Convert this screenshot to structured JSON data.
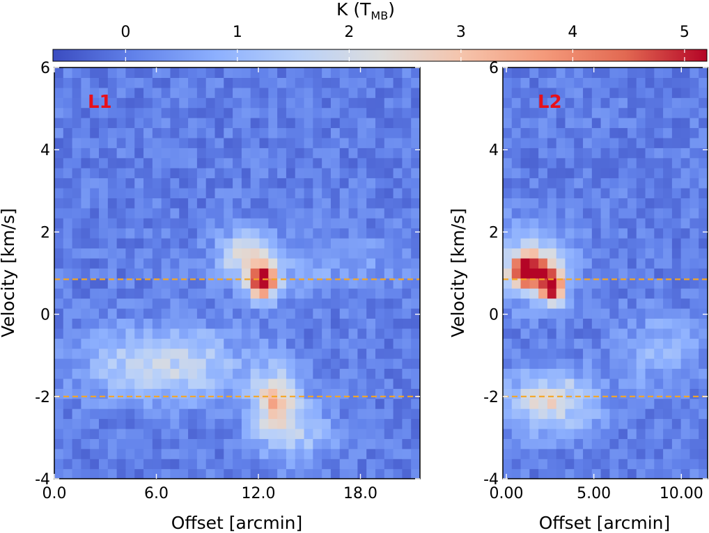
{
  "chart_data": [
    {
      "type": "heatmap",
      "panel": "L1",
      "xlabel": "Offset [arcmin]",
      "ylabel": "Velocity [km/s]",
      "xlim": [
        0,
        21.5
      ],
      "ylim": [
        -4,
        6
      ],
      "xticks": [
        0,
        6,
        12,
        18
      ],
      "xtick_labels": [
        "0.0",
        "6.0",
        "12.0",
        "18.0"
      ],
      "yticks": [
        -4,
        -2,
        0,
        2,
        4,
        6
      ],
      "ytick_labels": [
        "-4",
        "-2",
        "0",
        "2",
        "4",
        "6"
      ],
      "grid": {
        "nx": 41,
        "ny": 41
      },
      "reference_lines_kms": [
        0.85,
        -2.0
      ],
      "features": [
        {
          "center_offset": 12.3,
          "center_velocity": 0.8,
          "peak_K": 5.2,
          "sigma_offset": 0.6,
          "sigma_velocity": 0.3
        },
        {
          "center_offset": 11.2,
          "center_velocity": 1.5,
          "peak_K": 2.2,
          "sigma_offset": 1.0,
          "sigma_velocity": 0.35
        },
        {
          "center_offset": 15.5,
          "center_velocity": 1.2,
          "peak_K": 0.6,
          "sigma_offset": 4.0,
          "sigma_velocity": 0.5
        },
        {
          "center_offset": 6.5,
          "center_velocity": -1.2,
          "peak_K": 1.8,
          "sigma_offset": 3.2,
          "sigma_velocity": 0.6
        },
        {
          "center_offset": 13.0,
          "center_velocity": -2.2,
          "peak_K": 2.6,
          "sigma_offset": 1.0,
          "sigma_velocity": 0.6
        },
        {
          "center_offset": 14.5,
          "center_velocity": -2.9,
          "peak_K": 1.0,
          "sigma_offset": 1.5,
          "sigma_velocity": 0.5
        }
      ]
    },
    {
      "type": "heatmap",
      "panel": "L2",
      "xlabel": "Offset [arcmin]",
      "ylabel": "Velocity [km/s]",
      "xlim": [
        -0.2,
        11.5
      ],
      "ylim": [
        -4,
        6
      ],
      "xticks": [
        0,
        5,
        10
      ],
      "xtick_labels": [
        "0.00",
        "5.00",
        "10.00"
      ],
      "yticks": [
        -4,
        -2,
        0,
        2,
        4,
        6
      ],
      "ytick_labels": [
        "-4",
        "-2",
        "0",
        "2",
        "4",
        "6"
      ],
      "grid": {
        "nx": 23,
        "ny": 41
      },
      "reference_lines_kms": [
        0.85,
        -2.0
      ],
      "features": [
        {
          "center_offset": 1.3,
          "center_velocity": 1.05,
          "peak_K": 5.0,
          "sigma_offset": 0.8,
          "sigma_velocity": 0.3
        },
        {
          "center_offset": 2.6,
          "center_velocity": 0.7,
          "peak_K": 4.3,
          "sigma_offset": 0.5,
          "sigma_velocity": 0.3
        },
        {
          "center_offset": 1.5,
          "center_velocity": 1.3,
          "peak_K": 1.3,
          "sigma_offset": 1.8,
          "sigma_velocity": 0.7
        },
        {
          "center_offset": 2.5,
          "center_velocity": -2.1,
          "peak_K": 2.2,
          "sigma_offset": 1.8,
          "sigma_velocity": 0.5
        },
        {
          "center_offset": 8.8,
          "center_velocity": -0.9,
          "peak_K": 1.0,
          "sigma_offset": 1.5,
          "sigma_velocity": 0.6
        }
      ]
    }
  ],
  "colorbar": {
    "label_main": "K (T",
    "label_sub": "MB",
    "label_close": ")",
    "range": [
      -0.65,
      5.2
    ],
    "ticks": [
      0,
      1,
      2,
      3,
      4,
      5
    ],
    "tick_labels": [
      "0",
      "1",
      "2",
      "3",
      "4",
      "5"
    ],
    "colormap": "coolwarm",
    "colors": [
      "#3b4cc0",
      "#6282ea",
      "#8db0fe",
      "#b8d0f9",
      "#dddddd",
      "#f5c4ac",
      "#f49a7b",
      "#e26952",
      "#b40426"
    ]
  },
  "style": {
    "reference_line_color": "#f5a623",
    "panel_label_color": "#e8101a"
  }
}
